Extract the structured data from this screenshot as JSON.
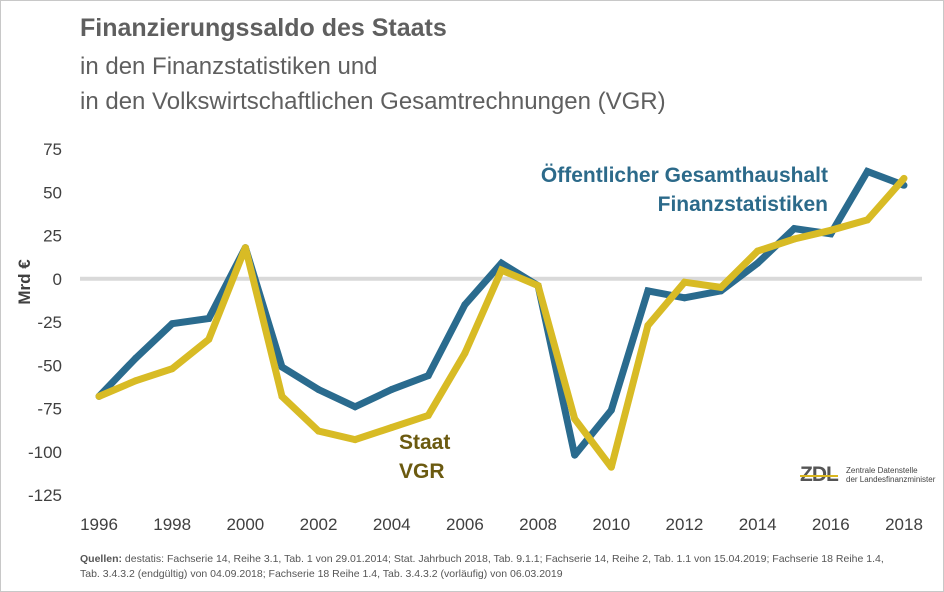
{
  "header": {
    "title": "Finanzierungssaldo des Staats",
    "subtitle_line1": "in den Finanzstatistiken und",
    "subtitle_line2": "in den Volkswirtschaftlichen Gesamtrechnungen (VGR)"
  },
  "colors": {
    "blue_series": "#2a6b8e",
    "gold_series": "#d8bb25",
    "zero_line": "#d9d9d9"
  },
  "chart_data": {
    "type": "line",
    "title": "Finanzierungssaldo des Staats",
    "xlabel": "",
    "ylabel": "Mrd €",
    "x": [
      1996,
      1997,
      1998,
      1999,
      2000,
      2001,
      2002,
      2003,
      2004,
      2005,
      2006,
      2007,
      2008,
      2009,
      2010,
      2011,
      2012,
      2013,
      2014,
      2015,
      2016,
      2017,
      2018
    ],
    "xlim": [
      1996,
      2018
    ],
    "ylim": [
      -125,
      75
    ],
    "x_ticks": [
      "1996",
      "1998",
      "2000",
      "2002",
      "2004",
      "2006",
      "2008",
      "2010",
      "2012",
      "2014",
      "2016",
      "2018"
    ],
    "y_ticks": [
      "75",
      "50",
      "25",
      "0",
      "-25",
      "-50",
      "-75",
      "-100",
      "-125"
    ],
    "y_tick_values": [
      75,
      50,
      25,
      0,
      -25,
      -50,
      -75,
      -100,
      -125
    ],
    "grid": false,
    "series": [
      {
        "key": "blue",
        "label_line1": "Öffentlicher Gesamthaushalt",
        "label_line2": "Finanzstatistiken",
        "values": [
          -68,
          -46,
          -26,
          -23,
          18,
          -51,
          -64,
          -74,
          -64,
          -56,
          -15,
          9,
          -4,
          -102,
          -76,
          -7,
          -11,
          -7,
          9,
          29,
          26,
          62,
          54
        ]
      },
      {
        "key": "gold",
        "label_line1": "Staat",
        "label_line2": "VGR",
        "values": [
          -68,
          -59,
          -52,
          -35,
          18,
          -68,
          -88,
          -93,
          -86,
          -79,
          -43,
          5,
          -4,
          -81,
          -109,
          -27,
          -2,
          -5,
          16,
          23,
          28,
          34,
          58
        ]
      }
    ]
  },
  "sources": {
    "label": "Quellen:",
    "text": " destatis: Fachserie 14, Reihe 3.1, Tab. 1 von 29.01.2014; Stat. Jahrbuch 2018, Tab. 9.1.1; Fachserie 14, Reihe 2, Tab. 1.1 von 15.04.2019; Fachserie 18 Reihe 1.4, Tab. 3.4.3.2 (endgültig) von 04.09.2018; Fachserie 18 Reihe 1.4, Tab. 3.4.3.2 (vorläufig) von 06.03.2019"
  },
  "logo": {
    "mark": "ZDL",
    "line1": "Zentrale Datenstelle",
    "line2": "der Landesfinanzminister"
  }
}
